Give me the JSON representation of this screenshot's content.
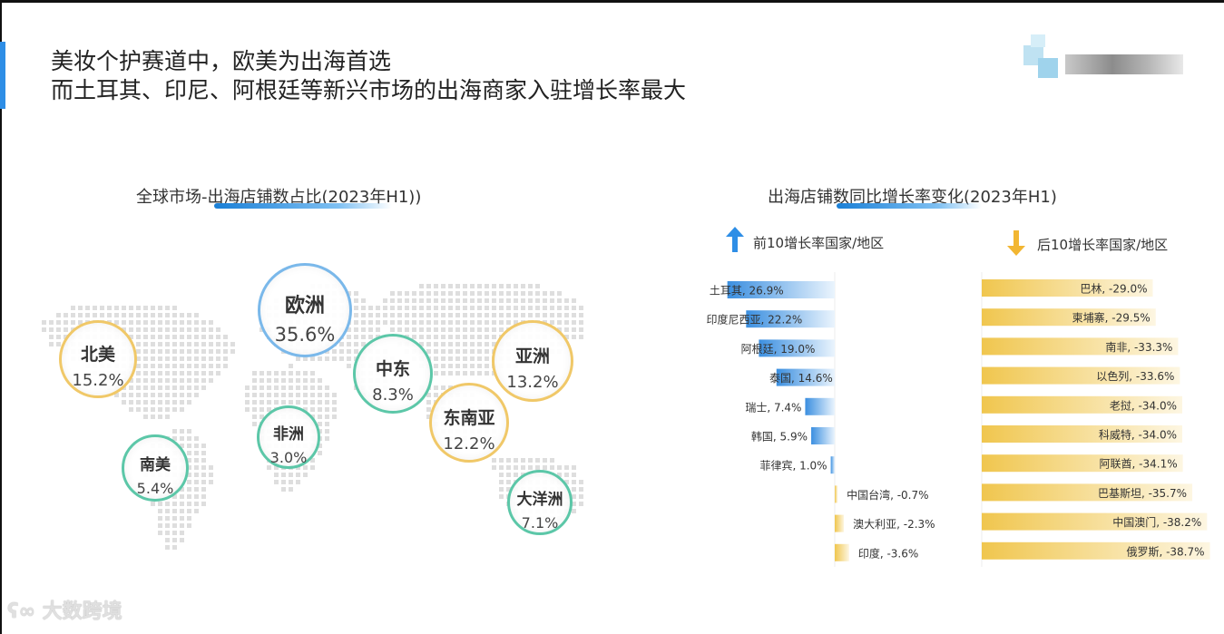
{
  "title_lines": [
    "美妆个护赛道中，欧美为出海首选",
    "而土耳其、印尼、阿根廷等新兴市场的出海商家入驻增长率最大"
  ],
  "colors": {
    "accent": "#2e8ee6",
    "up_bar": "#3b8fe0",
    "down_bar": "#f0c64e"
  },
  "chart_data": [
    {
      "type": "bubble-map",
      "title": "全球市场-出海店铺数占比(2023年H1))",
      "regions": [
        {
          "name": "北美",
          "value": 15.2,
          "label": "15.2%"
        },
        {
          "name": "欧洲",
          "value": 35.6,
          "label": "35.6%"
        },
        {
          "name": "中东",
          "value": 8.3,
          "label": "8.3%"
        },
        {
          "name": "亚洲",
          "value": 13.2,
          "label": "13.2%"
        },
        {
          "name": "东南亚",
          "value": 12.2,
          "label": "12.2%"
        },
        {
          "name": "非洲",
          "value": 3.0,
          "label": "3.0%"
        },
        {
          "name": "南美",
          "value": 5.4,
          "label": "5.4%"
        },
        {
          "name": "大洋洲",
          "value": 7.1,
          "label": "7.1%"
        }
      ]
    },
    {
      "type": "bar",
      "title": "出海店铺数同比增长率变化(2023年H1)",
      "legend_top": "前10增长率国家/地区",
      "legend_bottom": "后10增长率国家/地区",
      "top10": [
        {
          "label": "土耳其, 26.9%",
          "value": 26.9
        },
        {
          "label": "印度尼西亚, 22.2%",
          "value": 22.2
        },
        {
          "label": "阿根廷, 19.0%",
          "value": 19.0
        },
        {
          "label": "泰国, 14.6%",
          "value": 14.6
        },
        {
          "label": "瑞士, 7.4%",
          "value": 7.4
        },
        {
          "label": "韩国, 5.9%",
          "value": 5.9
        },
        {
          "label": "菲律宾, 1.0%",
          "value": 1.0
        },
        {
          "label": "中国台湾, -0.7%",
          "value": -0.7
        },
        {
          "label": "澳大利亚, -2.3%",
          "value": -2.3
        },
        {
          "label": "印度, -3.6%",
          "value": -3.6
        }
      ],
      "bottom10": [
        {
          "label": "巴林, -29.0%",
          "value": -29.0
        },
        {
          "label": "柬埔寨, -29.5%",
          "value": -29.5
        },
        {
          "label": "南非, -33.3%",
          "value": -33.3
        },
        {
          "label": "以色列, -33.6%",
          "value": -33.6
        },
        {
          "label": "老挝, -34.0%",
          "value": -34.0
        },
        {
          "label": "科威特, -34.0%",
          "value": -34.0
        },
        {
          "label": "阿联酋, -34.1%",
          "value": -34.1
        },
        {
          "label": "巴基斯坦, -35.7%",
          "value": -35.7
        },
        {
          "label": "中国澳门, -38.2%",
          "value": -38.2
        },
        {
          "label": "俄罗斯, -38.7%",
          "value": -38.7
        }
      ]
    }
  ],
  "watermark": "大数跨境"
}
